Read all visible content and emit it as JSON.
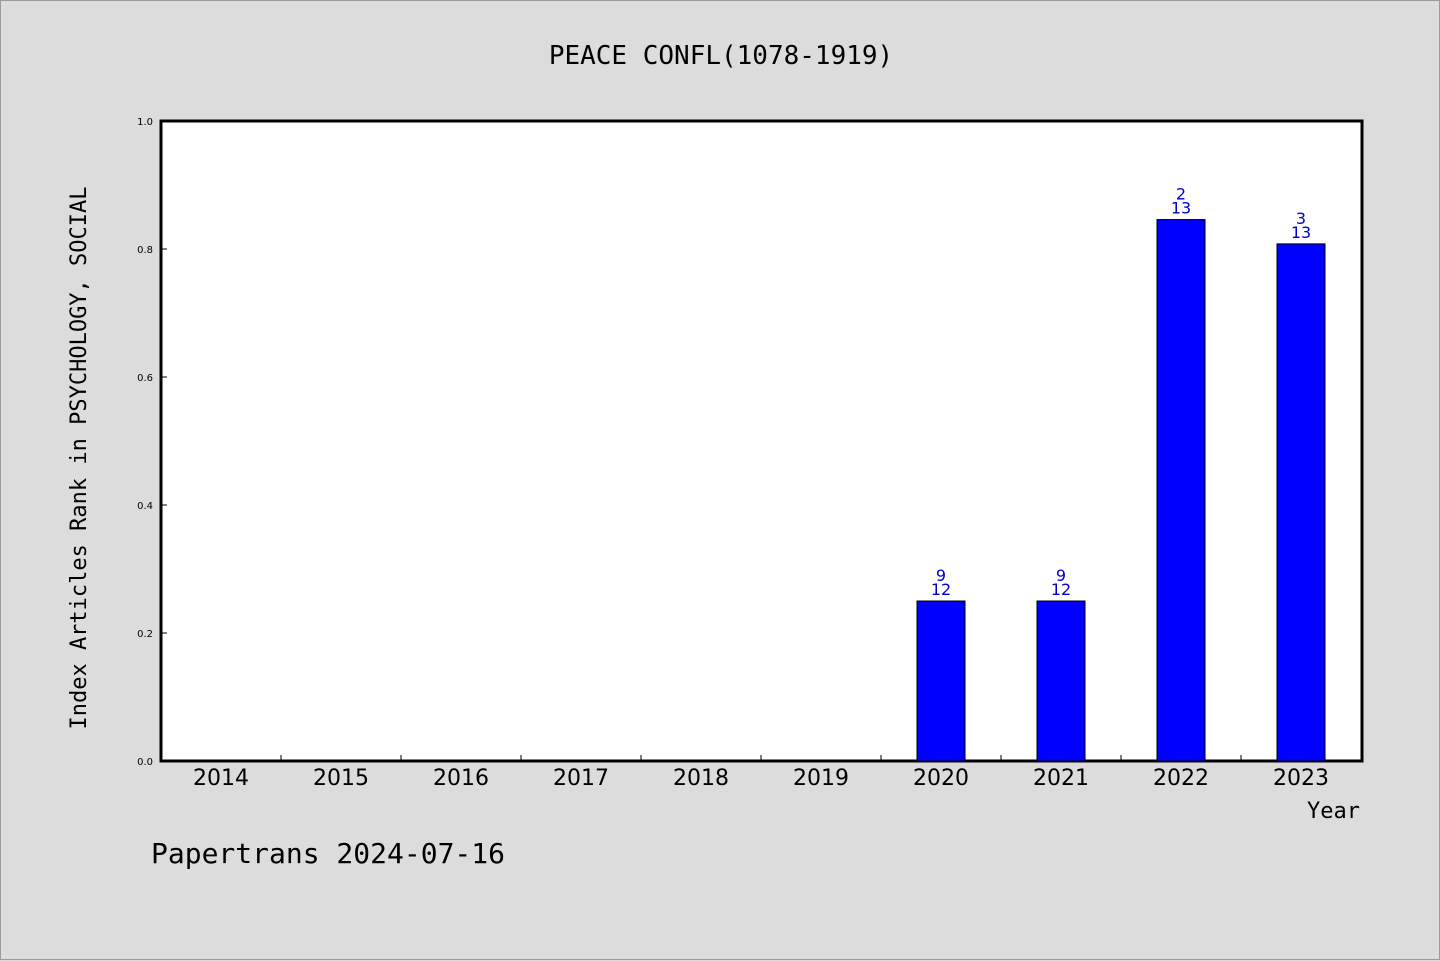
{
  "chart_data": {
    "type": "bar",
    "title": "PEACE CONFL(1078-1919)",
    "xlabel": "Year",
    "ylabel": "Index Articles Rank in PSYCHOLOGY, SOCIAL",
    "categories": [
      "2014",
      "2015",
      "2016",
      "2017",
      "2018",
      "2019",
      "2020",
      "2021",
      "2022",
      "2023"
    ],
    "values": [
      null,
      null,
      null,
      null,
      null,
      null,
      0.25,
      0.25,
      0.846,
      0.808
    ],
    "bar_labels": [
      null,
      null,
      null,
      null,
      null,
      null,
      {
        "rank": "9",
        "total": "12"
      },
      {
        "rank": "9",
        "total": "12"
      },
      {
        "rank": "2",
        "total": "13"
      },
      {
        "rank": "3",
        "total": "13"
      }
    ],
    "ylim": [
      0.0,
      1.0
    ],
    "yticks": [
      "0.0",
      "0.2",
      "0.4",
      "0.6",
      "0.8",
      "1.0"
    ],
    "bar_color": "#0000ff",
    "label_color": "#0000c8",
    "background": "#dcdcdc",
    "plot_background": "#ffffff"
  },
  "footer": "Papertrans 2024-07-16"
}
